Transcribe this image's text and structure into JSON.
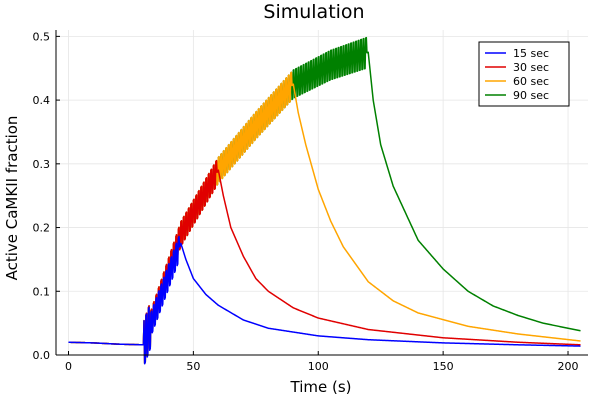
{
  "chart_data": {
    "type": "line",
    "title": "Simulation",
    "xlabel": "Time (s)",
    "ylabel": "Active CaMKII fraction",
    "xlim": [
      -5,
      208
    ],
    "ylim": [
      0,
      0.51
    ],
    "xticks": [
      0,
      50,
      100,
      150,
      200
    ],
    "yticks": [
      0.0,
      0.1,
      0.2,
      0.3,
      0.4,
      0.5
    ],
    "xtick_labels": [
      "0",
      "50",
      "100",
      "150",
      "200"
    ],
    "ytick_labels": [
      "0.0",
      "0.1",
      "0.2",
      "0.3",
      "0.4",
      "0.5"
    ],
    "grid": true,
    "legend_position": "top-right",
    "series": [
      {
        "name": "15 sec",
        "color": "#0000ff",
        "stim_end": 45,
        "x": [
          0,
          10,
          20,
          30,
          45,
          47,
          50,
          55,
          60,
          70,
          80,
          100,
          120,
          150,
          180,
          205
        ],
        "y": [
          0.02,
          0.019,
          0.017,
          0.016,
          0.175,
          0.15,
          0.12,
          0.095,
          0.078,
          0.055,
          0.042,
          0.03,
          0.024,
          0.019,
          0.016,
          0.014
        ]
      },
      {
        "name": "30 sec",
        "color": "#e00000",
        "stim_end": 60,
        "x": [
          0,
          10,
          20,
          30,
          45,
          60,
          62,
          65,
          70,
          75,
          80,
          90,
          100,
          120,
          150,
          180,
          205
        ],
        "y": [
          0.02,
          0.019,
          0.017,
          0.016,
          0.19,
          0.29,
          0.25,
          0.2,
          0.155,
          0.12,
          0.1,
          0.074,
          0.058,
          0.04,
          0.027,
          0.02,
          0.016
        ]
      },
      {
        "name": "60 sec",
        "color": "#ffa500",
        "stim_end": 90,
        "x": [
          0,
          10,
          20,
          30,
          45,
          60,
          75,
          90,
          92,
          95,
          100,
          105,
          110,
          120,
          130,
          140,
          160,
          180,
          205
        ],
        "y": [
          0.02,
          0.019,
          0.017,
          0.016,
          0.19,
          0.29,
          0.36,
          0.425,
          0.38,
          0.33,
          0.26,
          0.21,
          0.17,
          0.115,
          0.085,
          0.066,
          0.045,
          0.033,
          0.022
        ]
      },
      {
        "name": "90 sec",
        "color": "#008000",
        "stim_end": 120,
        "x": [
          0,
          10,
          20,
          30,
          45,
          60,
          75,
          90,
          105,
          120,
          122,
          125,
          130,
          140,
          150,
          160,
          170,
          180,
          190,
          205
        ],
        "y": [
          0.02,
          0.019,
          0.017,
          0.016,
          0.19,
          0.29,
          0.36,
          0.425,
          0.455,
          0.475,
          0.4,
          0.33,
          0.265,
          0.18,
          0.135,
          0.1,
          0.077,
          0.062,
          0.05,
          0.038
        ]
      }
    ]
  }
}
